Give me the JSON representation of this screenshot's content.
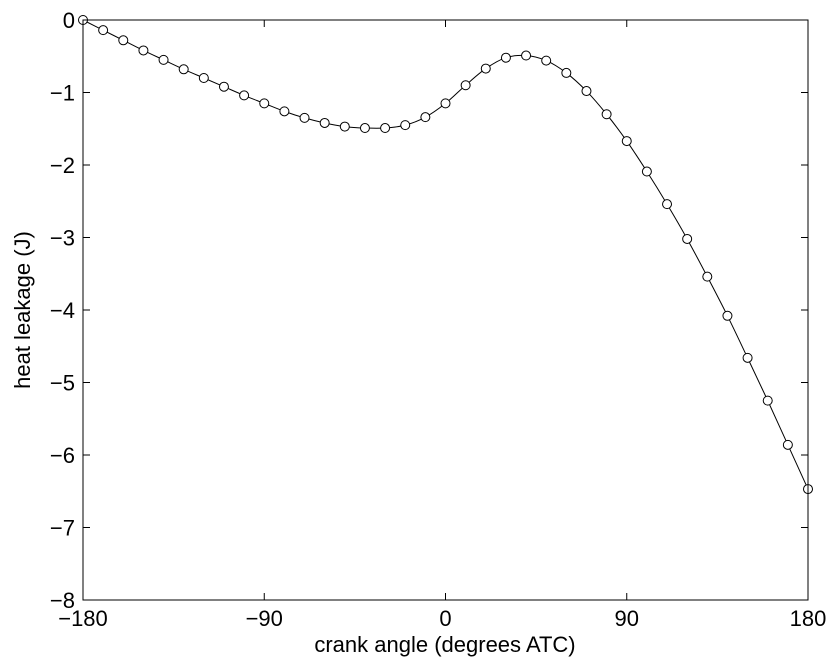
{
  "chart_data": {
    "type": "line",
    "title": "",
    "xlabel": "crank angle (degrees ATC)",
    "ylabel": "heat leakage (J)",
    "xlim": [
      -180,
      180
    ],
    "ylim": [
      -8,
      0
    ],
    "xticks": [
      -180,
      -90,
      0,
      90,
      180
    ],
    "xtick_labels": [
      "−180",
      "−90",
      "0",
      "90",
      "180"
    ],
    "yticks": [
      0,
      -1,
      -2,
      -3,
      -4,
      -5,
      -6,
      -7,
      -8
    ],
    "ytick_labels": [
      "0",
      "−1",
      "−2",
      "−3",
      "−4",
      "−5",
      "−6",
      "−7",
      "−8"
    ],
    "grid": false,
    "legend": "none",
    "series": [
      {
        "line_color": "#000000",
        "marker": "circle",
        "marker_fill": "none",
        "x": [
          -180,
          -170,
          -160,
          -150,
          -140,
          -130,
          -120,
          -110,
          -100,
          -90,
          -80,
          -70,
          -60,
          -50,
          -40,
          -30,
          -20,
          -10,
          0,
          10,
          20,
          30,
          40,
          50,
          60,
          70,
          80,
          90,
          100,
          110,
          120,
          130,
          140,
          150,
          160,
          170,
          180
        ],
        "y": [
          0.0,
          -0.14,
          -0.28,
          -0.42,
          -0.55,
          -0.68,
          -0.8,
          -0.92,
          -1.04,
          -1.15,
          -1.26,
          -1.35,
          -1.42,
          -1.47,
          -1.49,
          -1.49,
          -1.45,
          -1.34,
          -1.15,
          -0.9,
          -0.67,
          -0.52,
          -0.49,
          -0.56,
          -0.73,
          -0.98,
          -1.3,
          -1.67,
          -2.09,
          -2.54,
          -3.02,
          -3.54,
          -4.08,
          -4.66,
          -5.25,
          -5.86,
          -6.47
        ]
      }
    ]
  }
}
